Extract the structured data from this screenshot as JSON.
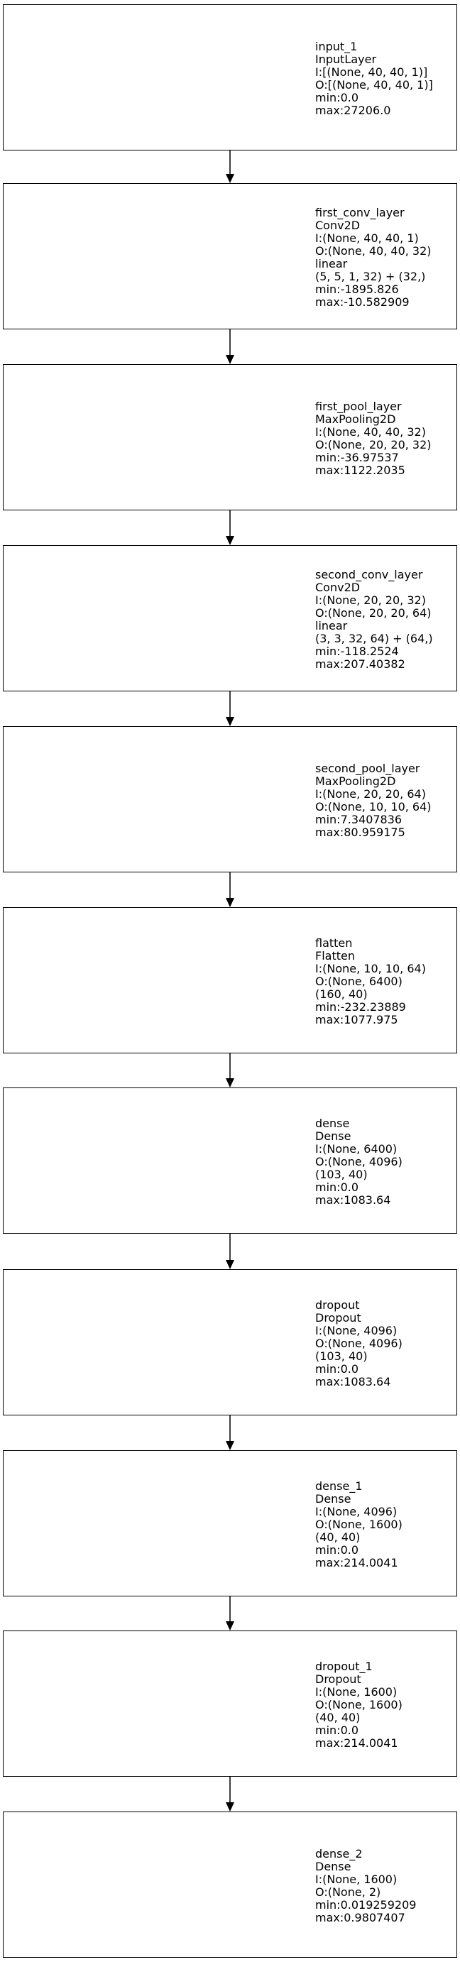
{
  "diagram": {
    "type": "keras-layer-visualization",
    "layers": [
      {
        "name": "input_1",
        "lines": [
          "input_1",
          "InputLayer",
          "I:[(None, 40, 40, 1)]",
          "O:[(None, 40, 40, 1)]",
          "min:0.0",
          "max:27206.0"
        ],
        "grid": [
          40,
          40
        ],
        "style": "sparse-input",
        "color": "#ff00ff"
      },
      {
        "name": "first_conv_layer",
        "lines": [
          "first_conv_layer",
          "Conv2D",
          "I:(None, 40, 40, 1)",
          "O:(None, 40, 40, 32)",
          "linear",
          "(5, 5, 1, 32) + (32,)",
          "min:-1895.826",
          "max:-10.582909"
        ],
        "grid": [
          40,
          40
        ],
        "style": "full",
        "color": "#7a7aff"
      },
      {
        "name": "first_pool_layer",
        "lines": [
          "first_pool_layer",
          "MaxPooling2D",
          "I:(None, 40, 40, 32)",
          "O:(None, 20, 20, 32)",
          "min:-36.97537",
          "max:1122.2035"
        ],
        "grid": [
          40,
          40
        ],
        "style": "light-with-patches",
        "color": "#ff40ff"
      },
      {
        "name": "second_conv_layer",
        "lines": [
          "second_conv_layer",
          "Conv2D",
          "I:(None, 20, 20, 32)",
          "O:(None, 20, 20, 64)",
          "linear",
          "(3, 3, 32, 64) + (64,)",
          "min:-118.2524",
          "max:207.40382"
        ],
        "grid": [
          40,
          40
        ],
        "style": "green-with-patches",
        "color": "#9ecf9e"
      },
      {
        "name": "second_pool_layer",
        "lines": [
          "second_pool_layer",
          "MaxPooling2D",
          "I:(None, 20, 20, 64)",
          "O:(None, 10, 10, 64)",
          "min:7.3407836",
          "max:80.959175"
        ],
        "grid": [
          40,
          40
        ],
        "style": "pool-with-blocks",
        "color": "#ff40ff"
      },
      {
        "name": "flatten",
        "lines": [
          "flatten",
          "Flatten",
          "I:(None, 10, 10, 64)",
          "O:(None, 6400)",
          "(160, 40)",
          "min:-232.23889",
          "max:1077.975"
        ],
        "grid": [
          40,
          40
        ],
        "style": "flatten",
        "color": "#9a9ab8"
      },
      {
        "name": "dense",
        "lines": [
          "dense",
          "Dense",
          "I:(None, 6400)",
          "O:(None, 4096)",
          "(103, 40)",
          "min:0.0",
          "max:1083.64"
        ],
        "grid": [
          40,
          40
        ],
        "style": "scatter-dense",
        "color": "#d070d0"
      },
      {
        "name": "dropout",
        "lines": [
          "dropout",
          "Dropout",
          "I:(None, 4096)",
          "O:(None, 4096)",
          "(103, 40)",
          "min:0.0",
          "max:1083.64"
        ],
        "grid": [
          40,
          40
        ],
        "style": "scatter-dense",
        "color": "#d070d0"
      },
      {
        "name": "dense_1",
        "lines": [
          "dense_1",
          "Dense",
          "I:(None, 4096)",
          "O:(None, 1600)",
          "(40, 40)",
          "min:0.0",
          "max:214.0041"
        ],
        "grid": [
          40,
          40
        ],
        "style": "scatter-sparse",
        "color": "#d070d0"
      },
      {
        "name": "dropout_1",
        "lines": [
          "dropout_1",
          "Dropout",
          "I:(None, 1600)",
          "O:(None, 1600)",
          "(40, 40)",
          "min:0.0",
          "max:214.0041"
        ],
        "grid": [
          40,
          40
        ],
        "style": "scatter-sparse",
        "color": "#d070d0"
      },
      {
        "name": "dense_2",
        "lines": [
          "dense_2",
          "Dense",
          "I:(None, 1600)",
          "O:(None, 2)",
          "min:0.019259209",
          "max:0.9807407"
        ],
        "grid": [
          40,
          20
        ],
        "style": "full-magenta",
        "color": "#ff40ff"
      }
    ]
  }
}
